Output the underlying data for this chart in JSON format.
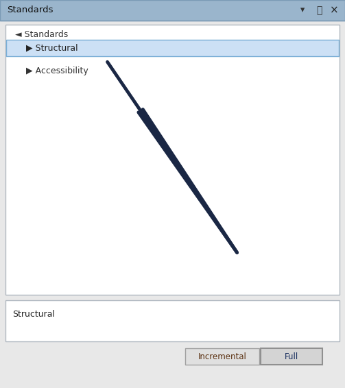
{
  "title_bar_text": "Standards",
  "title_bar_bg": "#9ab5cc",
  "panel_bg": "#e8e8e8",
  "tree_bg": "#ffffff",
  "tree_border": "#b0b8c0",
  "selected_row_bg": "#cce0f5",
  "selected_row_border": "#7aaed6",
  "tree_root_text": "◄ Standards",
  "tree_item1_text": "▶ Structural",
  "tree_item2_text": "▶ Accessibility",
  "bottom_label_text": "Structural",
  "bottom_label_border": "#b0b8c0",
  "btn_incremental_text": "Incremental",
  "btn_full_text": "Full",
  "btn_bg": "#e0e0e0",
  "btn_border": "#a0a0a0",
  "arrow_color": "#1a2744",
  "title_fontsize": 9.5,
  "tree_fontsize": 9.0,
  "label_fontsize": 9.0,
  "btn_fontsize": 8.5,
  "fig_width": 5.03,
  "fig_height": 5.66,
  "dpi": 100
}
